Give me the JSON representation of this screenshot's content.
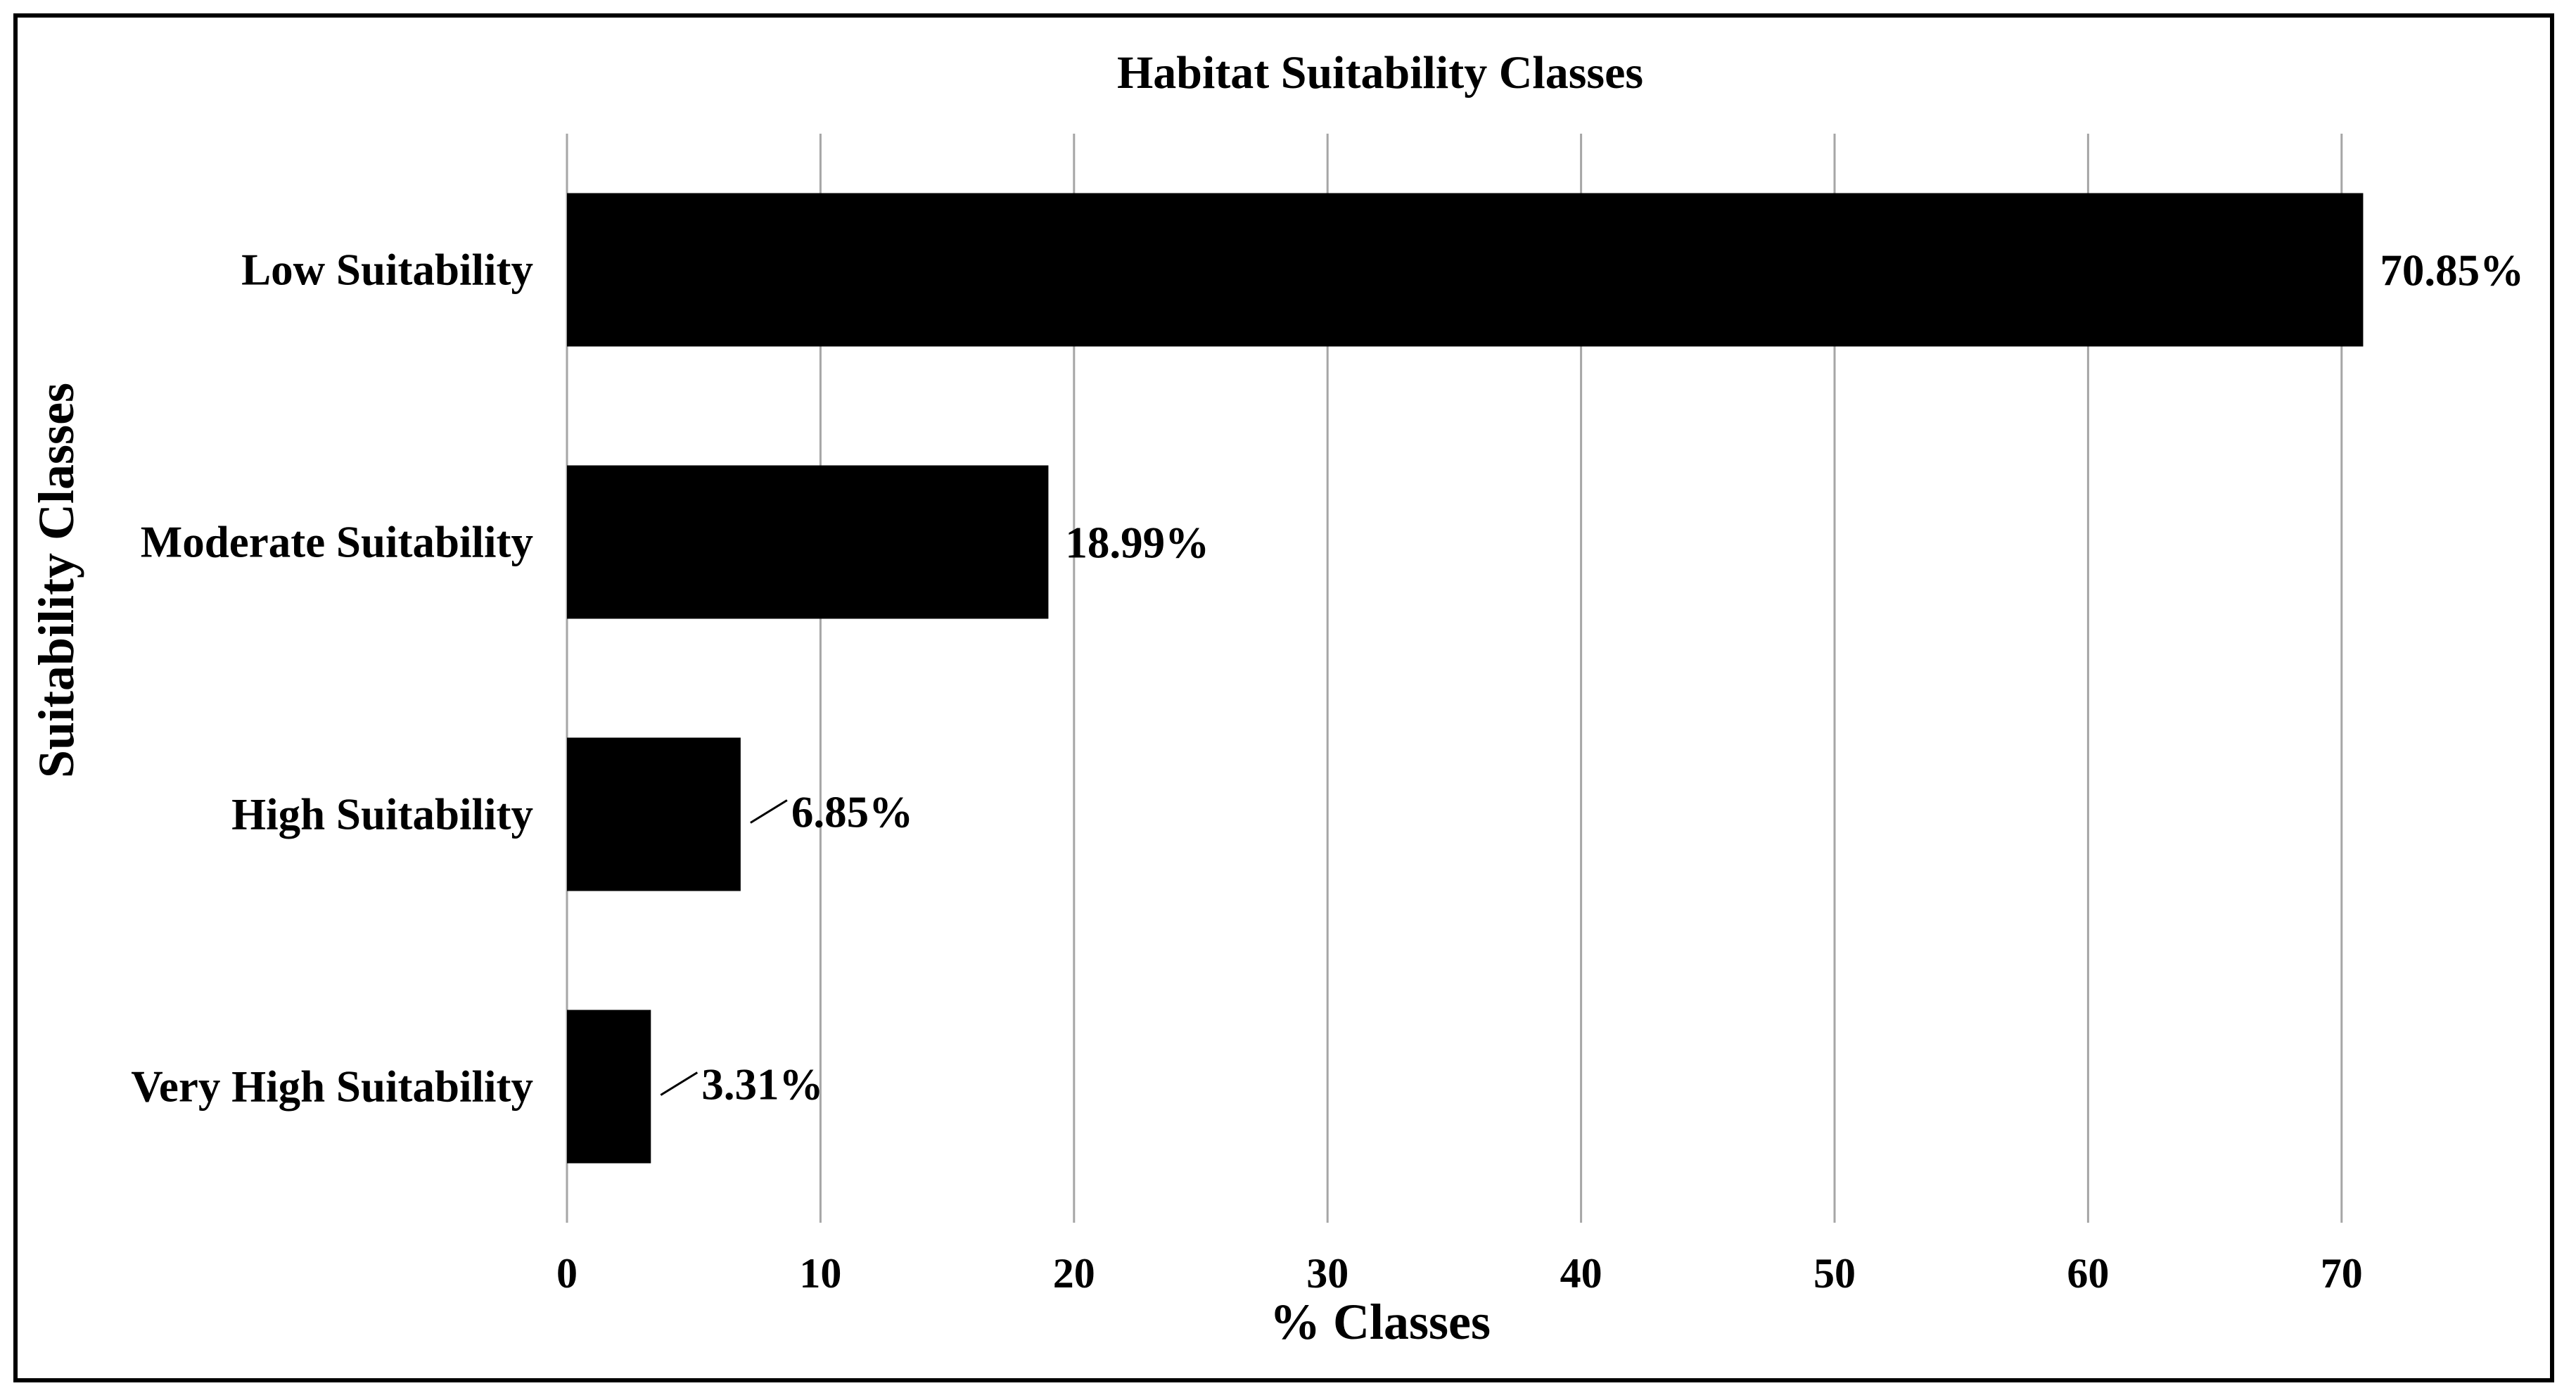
{
  "chart_data": {
    "type": "bar",
    "orientation": "horizontal",
    "title": "Habitat Suitability Classes",
    "xlabel": "% Classes",
    "ylabel": "Suitability Classes",
    "categories": [
      "Low Suitability",
      "Moderate Suitability",
      "High Suitability",
      "Very High Suitability"
    ],
    "values": [
      70.85,
      18.99,
      6.85,
      3.31
    ],
    "data_labels": [
      "70.85%",
      "18.99%",
      "6.85%",
      "3.31%"
    ],
    "xlim": [
      0,
      72
    ],
    "x_ticks": [
      0,
      10,
      20,
      30,
      40,
      50,
      60,
      70
    ],
    "grid": "vertical",
    "legend": "none",
    "bar_color": "#000000"
  }
}
